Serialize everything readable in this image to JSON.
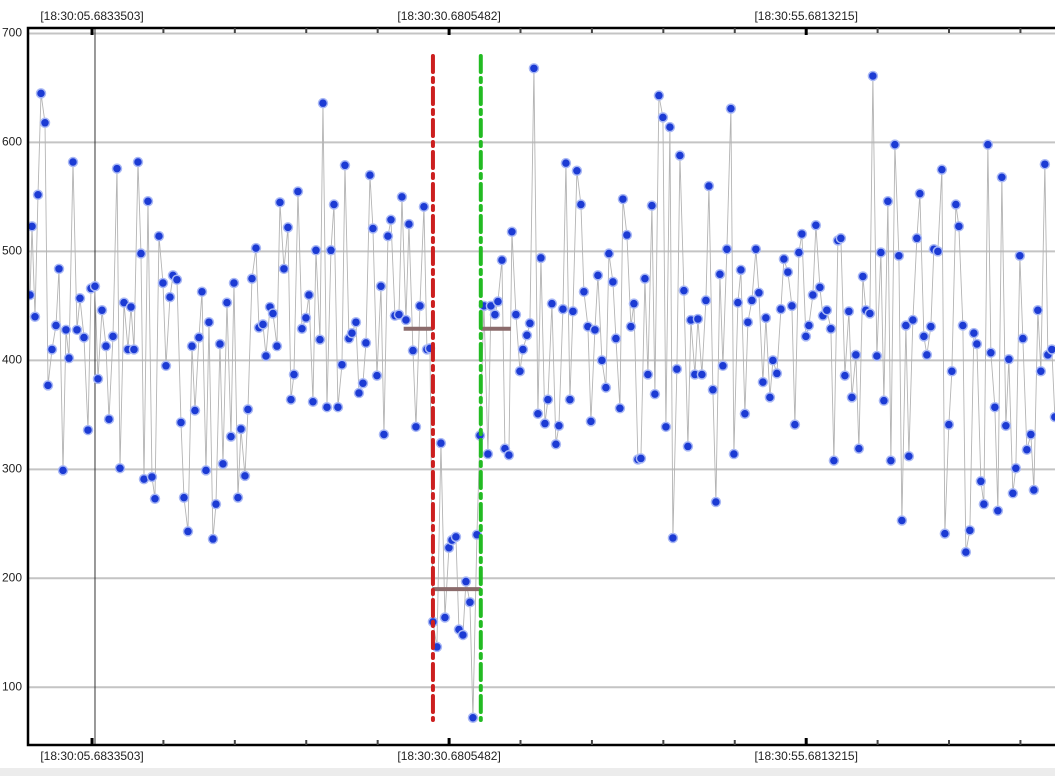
{
  "chart_data": {
    "type": "line",
    "x": [
      1.34,
      1.48,
      1.69,
      1.9,
      2.11,
      2.39,
      2.6,
      2.88,
      3.16,
      3.37,
      3.65,
      3.86,
      4.07,
      4.35,
      4.63,
      4.84,
      5.12,
      5.4,
      5.61,
      5.89,
      6.1,
      6.38,
      6.66,
      6.87,
      7.15,
      7.43,
      7.64,
      7.92,
      8.2,
      8.41,
      8.62,
      8.9,
      9.11,
      9.32,
      9.6,
      9.88,
      10.09,
      10.37,
      10.65,
      10.86,
      11.14,
      11.35,
      11.63,
      11.91,
      12.12,
      12.4,
      12.68,
      12.89,
      13.17,
      13.38,
      13.66,
      13.87,
      14.15,
      14.36,
      14.64,
      14.85,
      15.13,
      15.41,
      15.62,
      15.9,
      16.11,
      16.39,
      16.6,
      16.88,
      17.16,
      17.37,
      17.65,
      17.86,
      18.14,
      18.35,
      18.63,
      18.84,
      19.12,
      19.4,
      19.61,
      19.82,
      20.1,
      20.38,
      20.66,
      20.87,
      21.15,
      21.36,
      21.64,
      21.85,
      22.13,
      22.41,
      22.62,
      22.9,
      23.18,
      23.39,
      23.67,
      23.88,
      24.16,
      24.37,
      24.65,
      24.86,
      25.14,
      25.35,
      25.63,
      25.91,
      26.12,
      26.4,
      26.61,
      26.89,
      27.17,
      27.38,
      27.66,
      27.87,
      28.15,
      28.36,
      28.64,
      28.92,
      29.13,
      29.34,
      29.55,
      29.83,
      30.11,
      30.39,
      30.67,
      30.88,
      31.16,
      31.37,
      31.65,
      31.86,
      32.14,
      32.35,
      32.63,
      32.84,
      33.12,
      33.4,
      33.61,
      33.89,
      34.1,
      34.38,
      34.59,
      34.87,
      35.08,
      35.36,
      35.64,
      35.85,
      36.13,
      36.34,
      36.62,
      36.9,
      37.11,
      37.39,
      37.6,
      37.88,
      38.16,
      38.37,
      38.65,
      38.86,
      39.14,
      39.35,
      39.63,
      39.91,
      40.12,
      40.4,
      40.61,
      40.89,
      41.1,
      41.38,
      41.66,
      41.87,
      42.15,
      42.36,
      42.64,
      42.85,
      43.13,
      43.41,
      43.62,
      43.9,
      44.11,
      44.39,
      44.6,
      44.88,
      45.09,
      45.37,
      45.65,
      45.86,
      46.14,
      46.35,
      46.63,
      46.84,
      47.12,
      47.4,
      47.61,
      47.89,
      48.1,
      48.38,
      48.66,
      48.87,
      49.15,
      49.36,
      49.64,
      49.85,
      50.13,
      50.41,
      50.62,
      50.9,
      51.11,
      51.39,
      51.6,
      51.88,
      52.16,
      52.37,
      52.65,
      52.86,
      53.14,
      53.35,
      53.63,
      53.91,
      54.12,
      54.4,
      54.68,
      54.89,
      55.17,
      55.38,
      55.66,
      55.87,
      56.15,
      56.36,
      56.64,
      56.85,
      57.13,
      57.41,
      57.62,
      57.9,
      58.11,
      58.39,
      58.67,
      58.88,
      59.16,
      59.37,
      59.65,
      59.86,
      60.14,
      60.35,
      60.63,
      60.91,
      61.12,
      61.4,
      61.61,
      61.89,
      62.17,
      62.38,
      62.66,
      62.87,
      63.15,
      63.43,
      63.64,
      63.92,
      64.13,
      64.41,
      64.62,
      64.9,
      65.18,
      65.39,
      65.67,
      65.88,
      66.16,
      66.37,
      66.65,
      66.86,
      67.14,
      67.42,
      67.63,
      67.91,
      68.12,
      68.4,
      68.61,
      68.89,
      69.1,
      69.38,
      69.66,
      69.87,
      70.15,
      70.36,
      70.64,
      70.85,
      71.13,
      71.41,
      71.62,
      71.9,
      72.11,
      72.39,
      72.6,
      72.88,
      73.09
    ],
    "values": [
      460,
      523,
      440,
      552,
      645,
      618,
      377,
      410,
      432,
      484,
      299,
      428,
      402,
      582,
      428,
      457,
      421,
      336,
      466,
      468,
      383,
      446,
      413,
      346,
      422,
      576,
      301,
      453,
      410,
      449,
      410,
      582,
      498,
      291,
      546,
      293,
      273,
      514,
      471,
      395,
      458,
      478,
      474,
      343,
      274,
      243,
      413,
      354,
      421,
      463,
      299,
      435,
      236,
      268,
      415,
      305,
      453,
      330,
      471,
      274,
      337,
      294,
      355,
      475,
      503,
      430,
      433,
      404,
      449,
      443,
      413,
      545,
      484,
      522,
      364,
      387,
      555,
      429,
      439,
      460,
      362,
      501,
      419,
      636,
      357,
      501,
      543,
      357,
      396,
      579,
      420,
      425,
      435,
      370,
      379,
      416,
      570,
      521,
      386,
      468,
      332,
      514,
      529,
      441,
      442,
      550,
      437,
      525,
      409,
      339,
      450,
      541,
      410,
      411,
      160,
      137,
      324,
      164,
      228,
      235,
      238,
      153,
      148,
      197,
      178,
      72,
      240,
      331,
      450,
      314,
      450,
      442,
      454,
      492,
      319,
      313,
      518,
      442,
      390,
      410,
      423,
      434,
      668,
      351,
      494,
      342,
      364,
      452,
      323,
      340,
      447,
      581,
      364,
      445,
      574,
      543,
      463,
      431,
      344,
      428,
      478,
      400,
      375,
      498,
      472,
      420,
      356,
      548,
      515,
      431,
      452,
      309,
      310,
      475,
      387,
      542,
      369,
      643,
      623,
      339,
      614,
      237,
      392,
      588,
      464,
      321,
      437,
      387,
      438,
      387,
      455,
      560,
      373,
      270,
      479,
      395,
      502,
      631,
      314,
      453,
      483,
      351,
      435,
      455,
      502,
      462,
      380,
      439,
      366,
      400,
      388,
      447,
      493,
      481,
      450,
      341,
      499,
      516,
      422,
      432,
      460,
      524,
      467,
      441,
      446,
      429,
      308,
      510,
      512,
      386,
      445,
      366,
      405,
      319,
      477,
      446,
      443,
      661,
      404,
      499,
      363,
      546,
      308,
      598,
      496,
      253,
      432,
      312,
      437,
      512,
      553,
      422,
      405,
      431,
      502,
      500,
      575,
      241,
      341,
      390,
      543,
      523,
      432,
      224,
      244,
      425,
      415,
      289,
      268,
      598,
      407,
      357,
      262,
      568,
      340,
      401,
      278,
      301,
      496,
      420,
      318,
      332,
      281,
      446,
      390,
      580,
      405,
      410,
      348
    ],
    "color": "#1c3bd4",
    "line_color": "#b4b4b4",
    "xlim": [
      1.2,
      73.1
    ],
    "ylim": [
      47,
      705
    ],
    "xticks": [
      {
        "value": 5.6833503,
        "label": "[18:30:05.6833503]"
      },
      {
        "value": 30.6805482,
        "label": "[18:30:30.6805482]"
      },
      {
        "value": 55.6813215,
        "label": "[18:30:55.6813215]"
      }
    ],
    "xminorticks": [
      10.68,
      15.68,
      20.68,
      25.68,
      35.68,
      40.68,
      45.68,
      50.68,
      60.68,
      65.68,
      70.68
    ],
    "yticks": [
      100,
      200,
      300,
      400,
      500,
      600,
      700
    ],
    "grid": true,
    "cursor_x": 5.89,
    "markers": [
      {
        "x": 29.55,
        "color": "#cc1f1f"
      },
      {
        "x": 32.9,
        "color": "#22bb22"
      }
    ],
    "levels": [
      {
        "x": [
          27.5,
          29.55
        ],
        "value": 429
      },
      {
        "x": [
          29.55,
          32.9
        ],
        "value": 190
      },
      {
        "x": [
          32.9,
          35.0
        ],
        "value": 429
      }
    ],
    "level_color": "#8b6b6b"
  }
}
